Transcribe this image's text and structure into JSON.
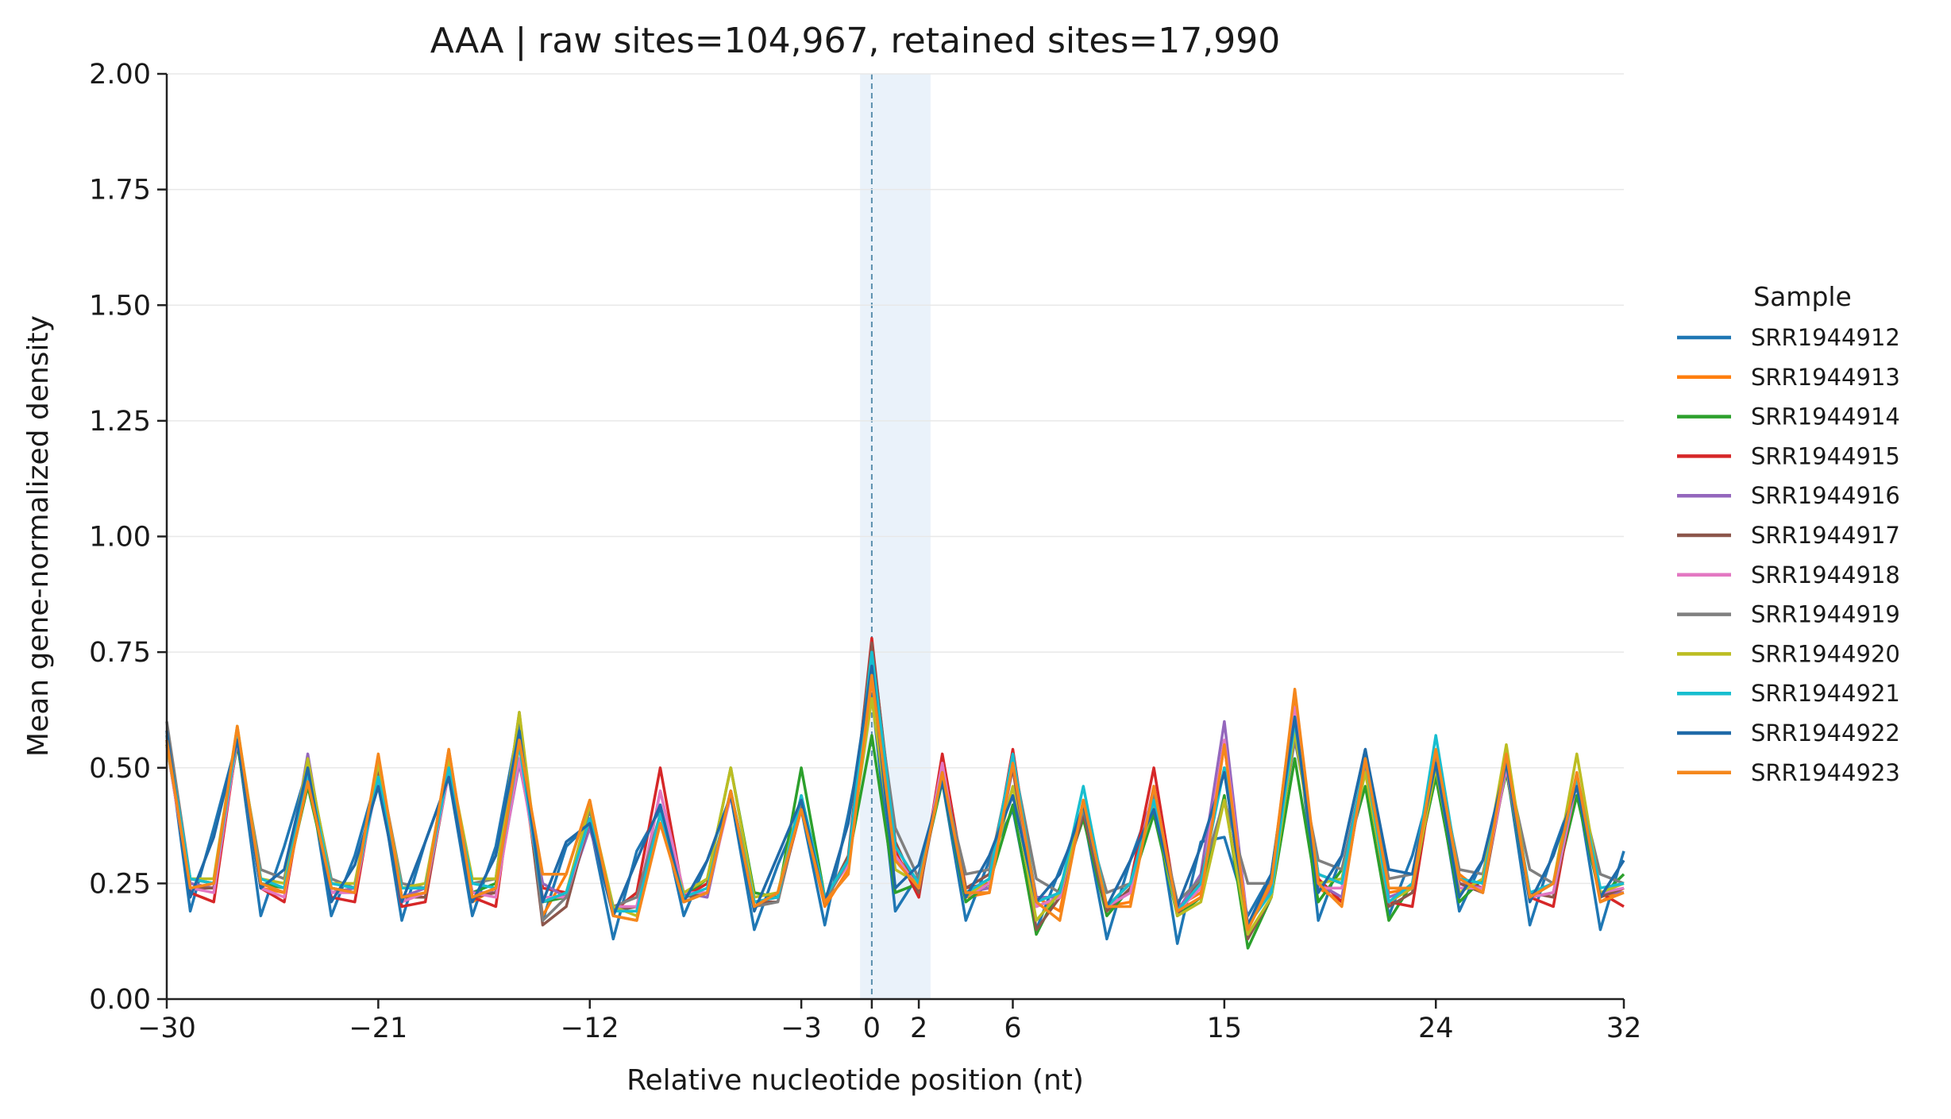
{
  "chart_data": {
    "type": "line",
    "title": "AAA | raw sites=104,967, retained sites=17,990",
    "xlabel": "Relative nucleotide position (nt)",
    "ylabel": "Mean gene-normalized density",
    "xlim": [
      -30,
      32
    ],
    "ylim": [
      0,
      2.0
    ],
    "xticks": [
      -30,
      -21,
      -12,
      -3,
      0,
      2,
      6,
      15,
      24,
      32
    ],
    "xtick_labels": [
      "−30",
      "−21",
      "−12",
      "−3",
      "0",
      "2",
      "6",
      "15",
      "24",
      "32"
    ],
    "yticks": [
      0,
      0.25,
      0.5,
      0.75,
      1.0,
      1.25,
      1.5,
      1.75,
      2.0
    ],
    "ytick_labels": [
      "0.00",
      "0.25",
      "0.50",
      "0.75",
      "1.00",
      "1.25",
      "1.50",
      "1.75",
      "2.00"
    ],
    "grid": "horizontal",
    "shaded_region": [
      -0.5,
      2.5
    ],
    "reference_line_x": 0,
    "legend_title": "Sample",
    "legend_position": "right",
    "x": [
      -30,
      -29,
      -28,
      -27,
      -26,
      -25,
      -24,
      -23,
      -22,
      -21,
      -20,
      -19,
      -18,
      -17,
      -16,
      -15,
      -14,
      -13,
      -12,
      -11,
      -10,
      -9,
      -8,
      -7,
      -6,
      -5,
      -4,
      -3,
      -2,
      -1,
      0,
      1,
      2,
      3,
      4,
      5,
      6,
      7,
      8,
      9,
      10,
      11,
      12,
      13,
      14,
      15,
      16,
      17,
      18,
      19,
      20,
      21,
      22,
      23,
      24,
      25,
      26,
      27,
      28,
      29,
      30,
      31,
      32
    ],
    "series": [
      {
        "name": "SRR1944912",
        "color": "#1f77b4",
        "values": [
          0.58,
          0.19,
          0.37,
          0.56,
          0.18,
          0.33,
          0.5,
          0.18,
          0.31,
          0.49,
          0.17,
          0.34,
          0.48,
          0.18,
          0.33,
          0.6,
          0.17,
          0.33,
          0.38,
          0.13,
          0.32,
          0.41,
          0.18,
          0.3,
          0.44,
          0.15,
          0.29,
          0.41,
          0.16,
          0.4,
          0.66,
          0.19,
          0.27,
          0.47,
          0.17,
          0.3,
          0.41,
          0.15,
          0.28,
          0.4,
          0.13,
          0.3,
          0.44,
          0.12,
          0.34,
          0.35,
          0.18,
          0.27,
          0.63,
          0.17,
          0.31,
          0.54,
          0.18,
          0.31,
          0.5,
          0.19,
          0.3,
          0.5,
          0.16,
          0.32,
          0.46,
          0.15,
          0.32
        ]
      },
      {
        "name": "SRR1944913",
        "color": "#ff7f0e",
        "values": [
          0.55,
          0.25,
          0.24,
          0.58,
          0.24,
          0.23,
          0.47,
          0.23,
          0.24,
          0.52,
          0.21,
          0.23,
          0.54,
          0.21,
          0.24,
          0.55,
          0.18,
          0.27,
          0.43,
          0.18,
          0.17,
          0.4,
          0.21,
          0.23,
          0.45,
          0.2,
          0.23,
          0.42,
          0.2,
          0.28,
          0.69,
          0.31,
          0.25,
          0.49,
          0.22,
          0.23,
          0.51,
          0.22,
          0.19,
          0.43,
          0.2,
          0.21,
          0.46,
          0.2,
          0.23,
          0.55,
          0.15,
          0.26,
          0.66,
          0.24,
          0.21,
          0.52,
          0.23,
          0.24,
          0.53,
          0.27,
          0.23,
          0.52,
          0.22,
          0.25,
          0.47,
          0.21,
          0.24
        ]
      },
      {
        "name": "SRR1944914",
        "color": "#2ca02c",
        "values": [
          0.56,
          0.26,
          0.25,
          0.55,
          0.25,
          0.24,
          0.46,
          0.24,
          0.23,
          0.51,
          0.22,
          0.22,
          0.5,
          0.23,
          0.25,
          0.57,
          0.21,
          0.22,
          0.41,
          0.19,
          0.23,
          0.38,
          0.22,
          0.26,
          0.5,
          0.23,
          0.22,
          0.5,
          0.22,
          0.3,
          0.57,
          0.23,
          0.25,
          0.47,
          0.21,
          0.25,
          0.42,
          0.14,
          0.24,
          0.39,
          0.18,
          0.24,
          0.4,
          0.18,
          0.22,
          0.44,
          0.11,
          0.22,
          0.52,
          0.21,
          0.28,
          0.46,
          0.17,
          0.25,
          0.48,
          0.21,
          0.26,
          0.49,
          0.22,
          0.23,
          0.44,
          0.22,
          0.27
        ]
      },
      {
        "name": "SRR1944915",
        "color": "#d62728",
        "values": [
          0.56,
          0.23,
          0.21,
          0.56,
          0.24,
          0.21,
          0.5,
          0.22,
          0.21,
          0.5,
          0.2,
          0.21,
          0.5,
          0.22,
          0.2,
          0.57,
          0.24,
          0.23,
          0.38,
          0.19,
          0.23,
          0.5,
          0.22,
          0.25,
          0.44,
          0.21,
          0.22,
          0.41,
          0.22,
          0.3,
          0.78,
          0.32,
          0.22,
          0.53,
          0.24,
          0.25,
          0.54,
          0.2,
          0.22,
          0.41,
          0.2,
          0.25,
          0.5,
          0.19,
          0.25,
          0.55,
          0.16,
          0.24,
          0.62,
          0.26,
          0.21,
          0.51,
          0.21,
          0.2,
          0.52,
          0.26,
          0.24,
          0.51,
          0.22,
          0.2,
          0.48,
          0.23,
          0.2
        ]
      },
      {
        "name": "SRR1944916",
        "color": "#9467bd",
        "values": [
          0.57,
          0.25,
          0.24,
          0.57,
          0.25,
          0.23,
          0.53,
          0.23,
          0.24,
          0.49,
          0.22,
          0.24,
          0.52,
          0.23,
          0.23,
          0.51,
          0.25,
          0.22,
          0.37,
          0.19,
          0.19,
          0.45,
          0.23,
          0.22,
          0.45,
          0.21,
          0.22,
          0.42,
          0.21,
          0.3,
          0.73,
          0.31,
          0.24,
          0.5,
          0.23,
          0.24,
          0.5,
          0.22,
          0.22,
          0.42,
          0.2,
          0.23,
          0.46,
          0.19,
          0.27,
          0.6,
          0.16,
          0.24,
          0.62,
          0.25,
          0.22,
          0.5,
          0.22,
          0.24,
          0.51,
          0.25,
          0.24,
          0.5,
          0.22,
          0.23,
          0.47,
          0.23,
          0.23
        ]
      },
      {
        "name": "SRR1944917",
        "color": "#8c564b",
        "values": [
          0.55,
          0.24,
          0.24,
          0.56,
          0.25,
          0.23,
          0.49,
          0.24,
          0.23,
          0.5,
          0.22,
          0.22,
          0.49,
          0.22,
          0.23,
          0.58,
          0.16,
          0.2,
          0.39,
          0.19,
          0.2,
          0.4,
          0.22,
          0.23,
          0.45,
          0.21,
          0.21,
          0.42,
          0.21,
          0.31,
          0.77,
          0.34,
          0.23,
          0.49,
          0.24,
          0.27,
          0.5,
          0.15,
          0.22,
          0.4,
          0.19,
          0.24,
          0.44,
          0.18,
          0.26,
          0.5,
          0.13,
          0.22,
          0.6,
          0.27,
          0.25,
          0.5,
          0.2,
          0.23,
          0.51,
          0.25,
          0.23,
          0.5,
          0.23,
          0.22,
          0.47,
          0.22,
          0.24
        ]
      },
      {
        "name": "SRR1944918",
        "color": "#e377c2",
        "values": [
          0.55,
          0.24,
          0.23,
          0.56,
          0.24,
          0.22,
          0.5,
          0.23,
          0.23,
          0.48,
          0.21,
          0.23,
          0.49,
          0.23,
          0.22,
          0.52,
          0.22,
          0.22,
          0.39,
          0.2,
          0.2,
          0.45,
          0.23,
          0.23,
          0.44,
          0.21,
          0.22,
          0.44,
          0.22,
          0.29,
          0.7,
          0.31,
          0.24,
          0.51,
          0.22,
          0.25,
          0.51,
          0.2,
          0.22,
          0.42,
          0.2,
          0.23,
          0.46,
          0.19,
          0.24,
          0.56,
          0.16,
          0.23,
          0.63,
          0.24,
          0.24,
          0.51,
          0.21,
          0.24,
          0.51,
          0.24,
          0.24,
          0.5,
          0.22,
          0.23,
          0.47,
          0.23,
          0.24
        ]
      },
      {
        "name": "SRR1944919",
        "color": "#7f7f7f",
        "values": [
          0.6,
          0.26,
          0.25,
          0.57,
          0.28,
          0.26,
          0.51,
          0.26,
          0.24,
          0.51,
          0.25,
          0.24,
          0.51,
          0.25,
          0.26,
          0.62,
          0.17,
          0.22,
          0.41,
          0.2,
          0.22,
          0.4,
          0.21,
          0.23,
          0.45,
          0.2,
          0.21,
          0.43,
          0.21,
          0.3,
          0.73,
          0.37,
          0.26,
          0.48,
          0.27,
          0.28,
          0.52,
          0.26,
          0.23,
          0.41,
          0.23,
          0.25,
          0.44,
          0.21,
          0.26,
          0.43,
          0.25,
          0.25,
          0.56,
          0.3,
          0.28,
          0.51,
          0.26,
          0.27,
          0.53,
          0.28,
          0.27,
          0.51,
          0.28,
          0.25,
          0.48,
          0.27,
          0.25
        ]
      },
      {
        "name": "SRR1944920",
        "color": "#bcbd22",
        "values": [
          0.55,
          0.26,
          0.26,
          0.59,
          0.26,
          0.25,
          0.52,
          0.25,
          0.25,
          0.51,
          0.24,
          0.25,
          0.52,
          0.26,
          0.26,
          0.62,
          0.21,
          0.23,
          0.42,
          0.2,
          0.18,
          0.38,
          0.23,
          0.26,
          0.5,
          0.22,
          0.23,
          0.44,
          0.22,
          0.3,
          0.65,
          0.28,
          0.25,
          0.48,
          0.22,
          0.26,
          0.46,
          0.17,
          0.23,
          0.42,
          0.2,
          0.25,
          0.42,
          0.18,
          0.21,
          0.43,
          0.14,
          0.22,
          0.58,
          0.25,
          0.26,
          0.49,
          0.21,
          0.24,
          0.5,
          0.23,
          0.26,
          0.55,
          0.22,
          0.25,
          0.53,
          0.23,
          0.25
        ]
      },
      {
        "name": "SRR1944921",
        "color": "#17becf",
        "values": [
          0.57,
          0.26,
          0.25,
          0.57,
          0.26,
          0.24,
          0.49,
          0.25,
          0.24,
          0.48,
          0.24,
          0.24,
          0.5,
          0.25,
          0.24,
          0.55,
          0.21,
          0.23,
          0.39,
          0.19,
          0.19,
          0.4,
          0.22,
          0.24,
          0.45,
          0.21,
          0.22,
          0.44,
          0.22,
          0.3,
          0.75,
          0.33,
          0.25,
          0.49,
          0.23,
          0.26,
          0.53,
          0.21,
          0.23,
          0.46,
          0.2,
          0.25,
          0.43,
          0.19,
          0.25,
          0.5,
          0.16,
          0.23,
          0.6,
          0.27,
          0.25,
          0.52,
          0.21,
          0.25,
          0.57,
          0.26,
          0.25,
          0.52,
          0.23,
          0.25,
          0.48,
          0.24,
          0.25
        ]
      },
      {
        "name": "SRR1944922",
        "color": "#1f6aa8",
        "values": [
          0.58,
          0.22,
          0.35,
          0.56,
          0.24,
          0.28,
          0.5,
          0.21,
          0.29,
          0.46,
          0.21,
          0.34,
          0.48,
          0.21,
          0.31,
          0.58,
          0.21,
          0.34,
          0.38,
          0.18,
          0.3,
          0.42,
          0.21,
          0.3,
          0.44,
          0.19,
          0.31,
          0.43,
          0.21,
          0.38,
          0.72,
          0.24,
          0.29,
          0.47,
          0.22,
          0.31,
          0.44,
          0.21,
          0.27,
          0.42,
          0.2,
          0.3,
          0.41,
          0.2,
          0.33,
          0.49,
          0.16,
          0.27,
          0.61,
          0.23,
          0.31,
          0.54,
          0.28,
          0.27,
          0.51,
          0.22,
          0.3,
          0.51,
          0.21,
          0.31,
          0.46,
          0.22,
          0.3
        ]
      },
      {
        "name": "SRR1944923",
        "color": "#f5871c",
        "values": [
          0.56,
          0.24,
          0.25,
          0.59,
          0.25,
          0.23,
          0.47,
          0.24,
          0.23,
          0.53,
          0.22,
          0.23,
          0.54,
          0.22,
          0.24,
          0.56,
          0.27,
          0.27,
          0.43,
          0.18,
          0.17,
          0.38,
          0.21,
          0.23,
          0.45,
          0.2,
          0.23,
          0.41,
          0.21,
          0.27,
          0.7,
          0.3,
          0.24,
          0.49,
          0.23,
          0.23,
          0.51,
          0.21,
          0.17,
          0.43,
          0.2,
          0.2,
          0.46,
          0.19,
          0.22,
          0.55,
          0.15,
          0.25,
          0.67,
          0.25,
          0.2,
          0.52,
          0.24,
          0.24,
          0.54,
          0.26,
          0.23,
          0.53,
          0.22,
          0.25,
          0.49,
          0.21,
          0.23
        ]
      }
    ]
  }
}
